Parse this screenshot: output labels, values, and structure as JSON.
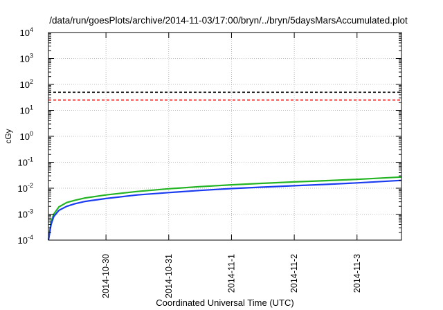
{
  "chart_data": {
    "type": "line",
    "title": "/data/run/goesPlots/archive/2014-11-03/17:00/bryn/../bryn/5daysMarsAccumulated.plot",
    "xlabel": "Coordinated Universal Time (UTC)",
    "ylabel": "cGy",
    "x_type": "date",
    "xlim": [
      "2014-10-29T02:00",
      "2014-11-03T17:00"
    ],
    "x_tick_labels": [
      "2014-10-30",
      "2014-10-31",
      "2014-11-1",
      "2014-11-2",
      "2014-11-3"
    ],
    "x_ticks": [
      "2014-10-30T00:00",
      "2014-10-31T00:00",
      "2014-11-01T00:00",
      "2014-11-02T00:00",
      "2014-11-03T00:00"
    ],
    "y_scale": "log",
    "ylim": [
      0.0001,
      10000
    ],
    "y_tick_bases": [
      "10",
      "10",
      "10",
      "10",
      "10",
      "10",
      "10",
      "10",
      "10"
    ],
    "y_tick_exponents": [
      "-4",
      "-3",
      "-2",
      "-1",
      "0",
      "1",
      "2",
      "3",
      "4"
    ],
    "y_ticks": [
      0.0001,
      0.001,
      0.01,
      0.1,
      1,
      10,
      100,
      1000,
      10000
    ],
    "grid": true,
    "reference_lines": [
      {
        "y": 50,
        "color": "#000000",
        "style": "dashed"
      },
      {
        "y": 25,
        "color": "#ff0000",
        "style": "dashed"
      }
    ],
    "series": [
      {
        "color": "#22b422",
        "x": [
          "2014-10-29T02:00",
          "2014-10-29T03:00",
          "2014-10-29T04:00",
          "2014-10-29T06:00",
          "2014-10-29T09:00",
          "2014-10-29T12:00",
          "2014-10-29T16:00",
          "2014-10-30T00:00",
          "2014-10-30T12:00",
          "2014-10-31T00:00",
          "2014-10-31T12:00",
          "2014-11-01T00:00",
          "2014-11-01T12:00",
          "2014-11-02T00:00",
          "2014-11-02T12:00",
          "2014-11-03T00:00",
          "2014-11-03T17:00"
        ],
        "values": [
          0.0001,
          0.0005,
          0.001,
          0.0019,
          0.0028,
          0.0034,
          0.0042,
          0.0055,
          0.0075,
          0.0095,
          0.0115,
          0.0135,
          0.0155,
          0.0175,
          0.0195,
          0.022,
          0.027
        ]
      },
      {
        "color": "#1a3cf0",
        "x": [
          "2014-10-29T02:00",
          "2014-10-29T03:00",
          "2014-10-29T04:00",
          "2014-10-29T06:00",
          "2014-10-29T09:00",
          "2014-10-29T12:00",
          "2014-10-29T16:00",
          "2014-10-30T00:00",
          "2014-10-30T12:00",
          "2014-10-31T00:00",
          "2014-10-31T12:00",
          "2014-11-01T00:00",
          "2014-11-01T12:00",
          "2014-11-02T00:00",
          "2014-11-02T12:00",
          "2014-11-03T00:00",
          "2014-11-03T17:00"
        ],
        "values": [
          0.0001,
          0.0004,
          0.0008,
          0.0014,
          0.002,
          0.0025,
          0.0031,
          0.004,
          0.0055,
          0.0068,
          0.0082,
          0.0097,
          0.011,
          0.0125,
          0.014,
          0.016,
          0.02
        ]
      }
    ]
  }
}
